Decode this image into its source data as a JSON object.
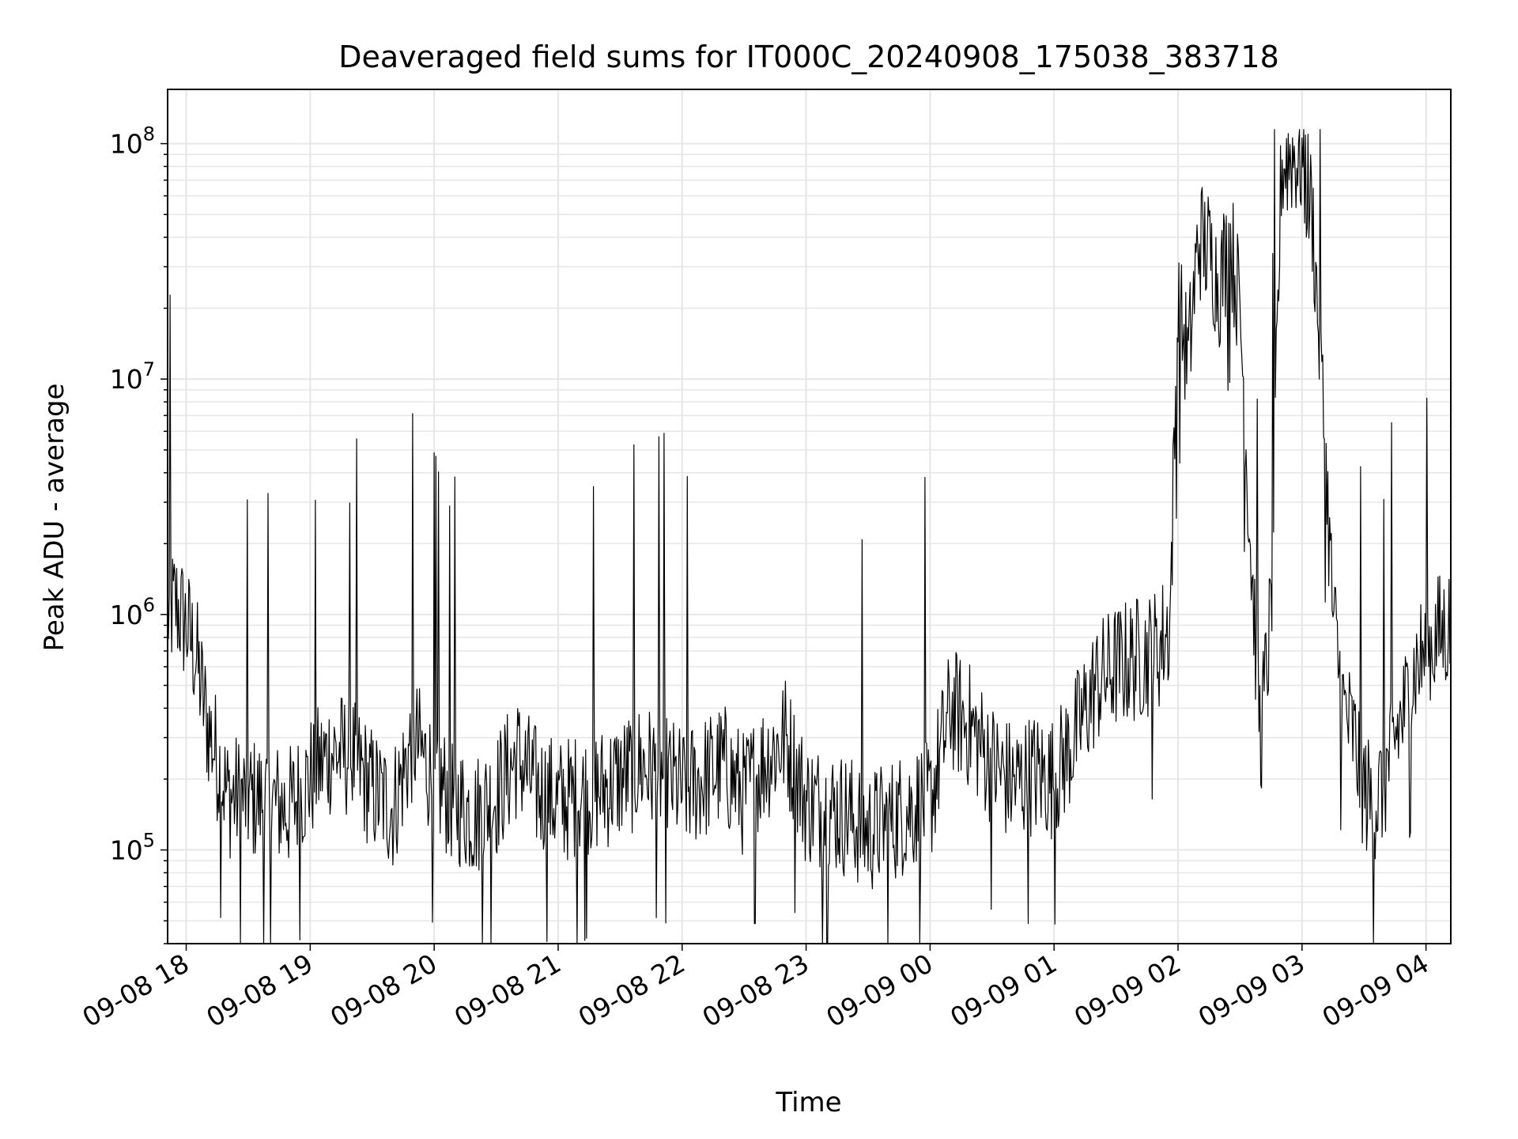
{
  "chart_data": {
    "type": "line",
    "title": "Deaveraged field sums for IT000C_20240908_175038_383718",
    "xlabel": "Time",
    "ylabel": "Peak ADU - average",
    "yscale": "log",
    "ylim": [
      40000,
      170000000
    ],
    "xlim": [
      "2024-09-08 17:51",
      "2024-09-09 04:12"
    ],
    "grid": true,
    "line_color": "#000000",
    "grid_color": "#e6e6e6",
    "x_ticks": [
      {
        "t": "2024-09-08 18:00",
        "label": "09-08 18"
      },
      {
        "t": "2024-09-08 19:00",
        "label": "09-08 19"
      },
      {
        "t": "2024-09-08 20:00",
        "label": "09-08 20"
      },
      {
        "t": "2024-09-08 21:00",
        "label": "09-08 21"
      },
      {
        "t": "2024-09-08 22:00",
        "label": "09-08 22"
      },
      {
        "t": "2024-09-08 23:00",
        "label": "09-08 23"
      },
      {
        "t": "2024-09-09 00:00",
        "label": "09-09 00"
      },
      {
        "t": "2024-09-09 01:00",
        "label": "09-09 01"
      },
      {
        "t": "2024-09-09 02:00",
        "label": "09-09 02"
      },
      {
        "t": "2024-09-09 03:00",
        "label": "09-09 03"
      },
      {
        "t": "2024-09-09 04:00",
        "label": "09-09 04"
      }
    ],
    "y_ticks": [
      {
        "value": 100000,
        "base": "10",
        "exp": "5"
      },
      {
        "value": 1000000,
        "base": "10",
        "exp": "6"
      },
      {
        "value": 10000000,
        "base": "10",
        "exp": "7"
      },
      {
        "value": 100000000,
        "base": "10",
        "exp": "8"
      }
    ],
    "series": [
      {
        "x": [
          "2024-09-08 17:51",
          "2024-09-08 17:55",
          "2024-09-08 18:00",
          "2024-09-08 18:05",
          "2024-09-08 18:10",
          "2024-09-08 18:20",
          "2024-09-08 18:30",
          "2024-09-08 18:40",
          "2024-09-08 18:50",
          "2024-09-08 19:00",
          "2024-09-08 19:10",
          "2024-09-08 19:20",
          "2024-09-08 19:30",
          "2024-09-08 19:40",
          "2024-09-08 19:50",
          "2024-09-08 20:00",
          "2024-09-08 20:10",
          "2024-09-08 20:20",
          "2024-09-08 20:30",
          "2024-09-08 20:40",
          "2024-09-08 20:50",
          "2024-09-08 21:00",
          "2024-09-08 21:10",
          "2024-09-08 21:20",
          "2024-09-08 21:30",
          "2024-09-08 21:40",
          "2024-09-08 21:50",
          "2024-09-08 22:00",
          "2024-09-08 22:10",
          "2024-09-08 22:20",
          "2024-09-08 22:30",
          "2024-09-08 22:40",
          "2024-09-08 22:50",
          "2024-09-08 23:00",
          "2024-09-08 23:10",
          "2024-09-08 23:20",
          "2024-09-08 23:30",
          "2024-09-08 23:40",
          "2024-09-08 23:50",
          "2024-09-09 00:00",
          "2024-09-09 00:10",
          "2024-09-09 00:20",
          "2024-09-09 00:30",
          "2024-09-09 00:40",
          "2024-09-09 00:50",
          "2024-09-09 01:00",
          "2024-09-09 01:10",
          "2024-09-09 01:20",
          "2024-09-09 01:30",
          "2024-09-09 01:40",
          "2024-09-09 01:50",
          "2024-09-09 01:56",
          "2024-09-09 02:00",
          "2024-09-09 02:05",
          "2024-09-09 02:10",
          "2024-09-09 02:15",
          "2024-09-09 02:20",
          "2024-09-09 02:25",
          "2024-09-09 02:30",
          "2024-09-09 02:35",
          "2024-09-09 02:40",
          "2024-09-09 02:45",
          "2024-09-09 02:50",
          "2024-09-09 02:55",
          "2024-09-09 03:00",
          "2024-09-09 03:05",
          "2024-09-09 03:10",
          "2024-09-09 03:15",
          "2024-09-09 03:20",
          "2024-09-09 03:25",
          "2024-09-09 03:30",
          "2024-09-09 03:35",
          "2024-09-09 03:40",
          "2024-09-09 03:45",
          "2024-09-09 03:50",
          "2024-09-09 03:55",
          "2024-09-09 04:00",
          "2024-09-09 04:05",
          "2024-09-09 04:12"
        ],
        "y": [
          1000000,
          1100000,
          900000,
          650000,
          350000,
          170000,
          165000,
          160000,
          150000,
          200000,
          260000,
          250000,
          180000,
          150000,
          300000,
          200000,
          160000,
          140000,
          170000,
          250000,
          180000,
          160000,
          170000,
          180000,
          200000,
          230000,
          210000,
          180000,
          200000,
          230000,
          170000,
          240000,
          300000,
          160000,
          150000,
          140000,
          120000,
          130000,
          150000,
          160000,
          400000,
          330000,
          230000,
          190000,
          210000,
          200000,
          300000,
          500000,
          600000,
          650000,
          700000,
          900000,
          20000000,
          12000000,
          40000000,
          35000000,
          25000000,
          40000000,
          20000000,
          2000000,
          300000,
          1000000,
          80000000,
          90000000,
          85000000,
          50000000,
          8000000,
          1000000,
          400000,
          300000,
          180000,
          150000,
          200000,
          300000,
          400000,
          600000,
          700000,
          800000,
          900000
        ]
      }
    ]
  }
}
